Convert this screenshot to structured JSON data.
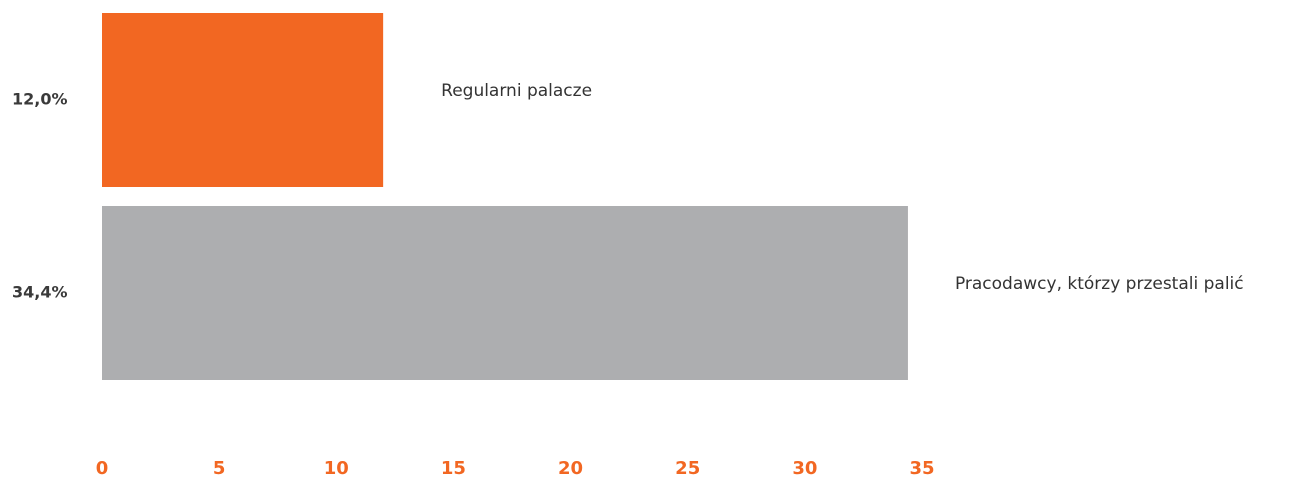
{
  "chart_data": {
    "type": "bar",
    "orientation": "horizontal",
    "categories": [
      "Regularni palacze",
      "Pracodawcy, którzy przestali palić"
    ],
    "values": [
      12.0,
      34.4
    ],
    "value_labels": [
      "12,0%",
      "34,4%"
    ],
    "bar_colors": [
      "#f26722",
      "#adaeb0"
    ],
    "xlim": [
      0,
      35
    ],
    "xticks": [
      0,
      5,
      10,
      15,
      20,
      25,
      30,
      35
    ],
    "tick_color": "#f26722",
    "grid": false,
    "legend": "none"
  }
}
